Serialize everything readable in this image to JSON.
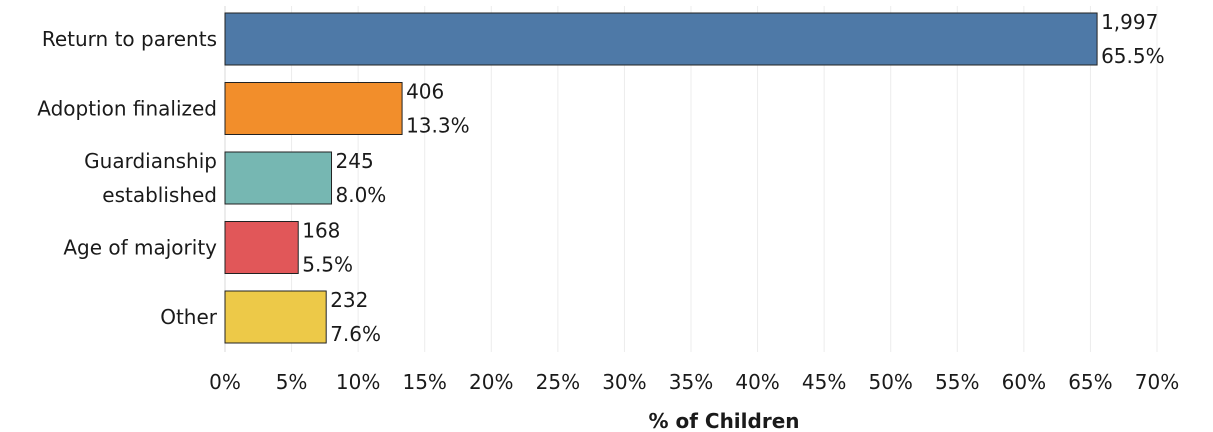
{
  "chart_data": {
    "type": "bar",
    "orientation": "horizontal",
    "title": "",
    "xlabel": "% of Children",
    "ylabel": "",
    "xlim": [
      0,
      70
    ],
    "xticks": [
      "0%",
      "5%",
      "10%",
      "15%",
      "20%",
      "25%",
      "30%",
      "35%",
      "40%",
      "45%",
      "50%",
      "55%",
      "60%",
      "65%",
      "70%"
    ],
    "grid": true,
    "legend": "none",
    "categories": [
      [
        "Return to parents"
      ],
      [
        "Adoption finalized"
      ],
      [
        "Guardianship",
        "established"
      ],
      [
        "Age of majority"
      ],
      [
        "Other"
      ]
    ],
    "values": [
      65.5,
      13.3,
      8.0,
      5.5,
      7.6
    ],
    "counts": [
      1997,
      406,
      245,
      168,
      232
    ],
    "count_labels": [
      "1,997",
      "406",
      "245",
      "168",
      "232"
    ],
    "pct_labels": [
      "65.5%",
      "13.3%",
      "8.0%",
      "5.5%",
      "7.6%"
    ],
    "colors": [
      "#4e79a7",
      "#f28e2b",
      "#76b7b2",
      "#e15759",
      "#edc948"
    ]
  }
}
